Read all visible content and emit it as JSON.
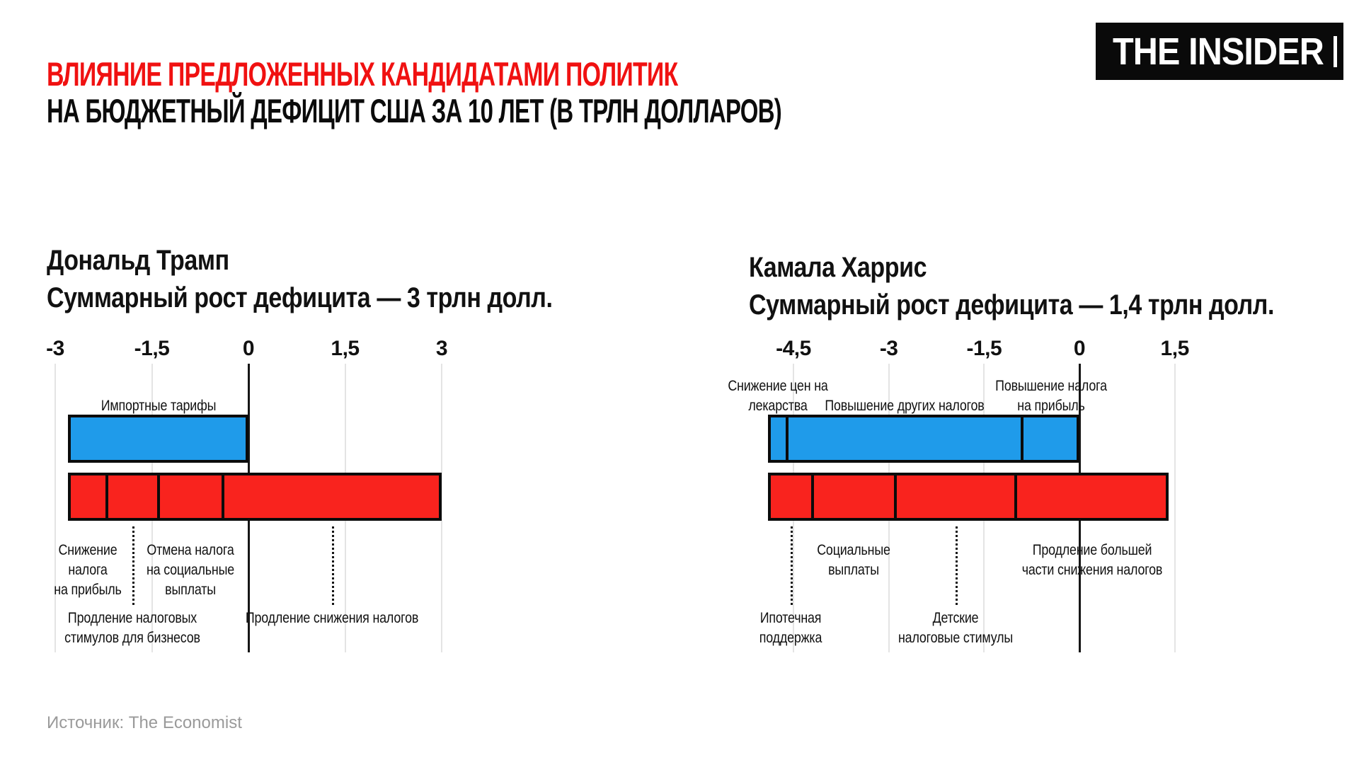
{
  "header": {
    "title_line1": "ВЛИЯНИЕ ПРЕДЛОЖЕННЫХ КАНДИДАТАМИ ПОЛИТИК",
    "title_line2": "НА БЮДЖЕТНЫЙ ДЕФИЦИТ США ЗА 10 ЛЕТ (В ТРЛН ДОЛЛАРОВ)",
    "logo_text": "THE INSIDER"
  },
  "footer": {
    "source": "Источник: The Economist"
  },
  "colors": {
    "title_red": "#F01111",
    "title_black": "#0B0B0B",
    "bar_red": "#F9231E",
    "bar_blue": "#1F9BEA",
    "bar_border": "#0B0B0B",
    "gridline": "#E4E4E4",
    "zero_line": "#161616",
    "text": "#111111",
    "source_gray": "#9A9A9A",
    "logo_bg": "#0A0A0A",
    "logo_fg": "#FFFFFF"
  },
  "chart_data": [
    {
      "type": "bar",
      "orientation": "horizontal",
      "title": "Дональд Трамп",
      "subtitle": "Суммарный рост дефицита — 3 трлн долл.",
      "total_deficit_change_trln": 3.0,
      "units": "трлн долларов",
      "xlabel_ticks": [
        "-3",
        "-1,5",
        "0",
        "1,5",
        "3"
      ],
      "xlim": [
        -3.2,
        3.3
      ],
      "grid": true,
      "legend_position": "none",
      "bars": [
        {
          "name": "deficit-reducing",
          "color_key": "bar_blue",
          "start": -2.8,
          "end": 0,
          "total_trln": 2.8,
          "segments": [
            {
              "label": "Импортные тарифы",
              "label_lines": "Импортные тарифы",
              "value": 2.8,
              "label_row": "above",
              "connector": false
            }
          ]
        },
        {
          "name": "deficit-increasing",
          "color_key": "bar_red",
          "start": -2.8,
          "end": 3.0,
          "total_trln": 5.8,
          "segments": [
            {
              "label": "Снижение налога на прибыль",
              "label_lines": "Снижение\nналога\nна прибыль",
              "value": 0.6,
              "label_row": "under",
              "connector": false
            },
            {
              "label": "Продление налоговых стимулов для бизнесов",
              "label_lines": "Продление налоговых\nстимулов для бизнесов",
              "value": 0.8,
              "label_row": "under2",
              "connector": true
            },
            {
              "label": "Отмена налога на социальные выплаты",
              "label_lines": "Отмена налога\nна социальные\nвыплаты",
              "value": 1.0,
              "label_row": "under",
              "connector": false
            },
            {
              "label": "Продление снижения налогов",
              "label_lines": "Продление снижения налогов",
              "value": 3.4,
              "label_row": "under2",
              "connector": true
            }
          ]
        }
      ]
    },
    {
      "type": "bar",
      "orientation": "horizontal",
      "title": "Камала Харрис",
      "subtitle": "Суммарный рост дефицита — 1,4 трлн долл.",
      "total_deficit_change_trln": 1.4,
      "units": "трлн долларов",
      "xlabel_ticks": [
        "-4,5",
        "-3",
        "-1,5",
        "0",
        "1,5"
      ],
      "xlim": [
        -5.1,
        1.7
      ],
      "grid": true,
      "legend_position": "none",
      "bars": [
        {
          "name": "deficit-reducing",
          "color_key": "bar_blue",
          "start": -4.9,
          "end": 0,
          "total_trln": 4.9,
          "segments": [
            {
              "label": "Снижение цен на лекарства",
              "label_lines": "Снижение цен на\nлекарства",
              "value": 0.3,
              "label_row": "above",
              "connector": false
            },
            {
              "label": "Повышение других налогов",
              "label_lines": "Повышение других налогов",
              "value": 3.7,
              "label_row": "above",
              "connector": false
            },
            {
              "label": "Повышение налога на прибыль",
              "label_lines": "Повышение налога\nна прибыль",
              "value": 0.9,
              "label_row": "above",
              "connector": false
            }
          ]
        },
        {
          "name": "deficit-increasing",
          "color_key": "bar_red",
          "start": -4.9,
          "end": 1.4,
          "total_trln": 6.3,
          "segments": [
            {
              "label": "Ипотечная поддержка",
              "label_lines": "Ипотечная\nподдержка",
              "value": 0.7,
              "label_row": "under2",
              "connector": true
            },
            {
              "label": "Социальные выплаты",
              "label_lines": "Социальные\nвыплаты",
              "value": 1.3,
              "label_row": "under",
              "connector": false
            },
            {
              "label": "Детские налоговые стимулы",
              "label_lines": "Детские\nналоговые стимулы",
              "value": 1.9,
              "label_row": "under2",
              "connector": true
            },
            {
              "label": "Продление большей части снижения налогов",
              "label_lines": "Продление большей\nчасти снижения налогов",
              "value": 2.4,
              "label_row": "under",
              "connector": false
            }
          ]
        }
      ]
    }
  ]
}
